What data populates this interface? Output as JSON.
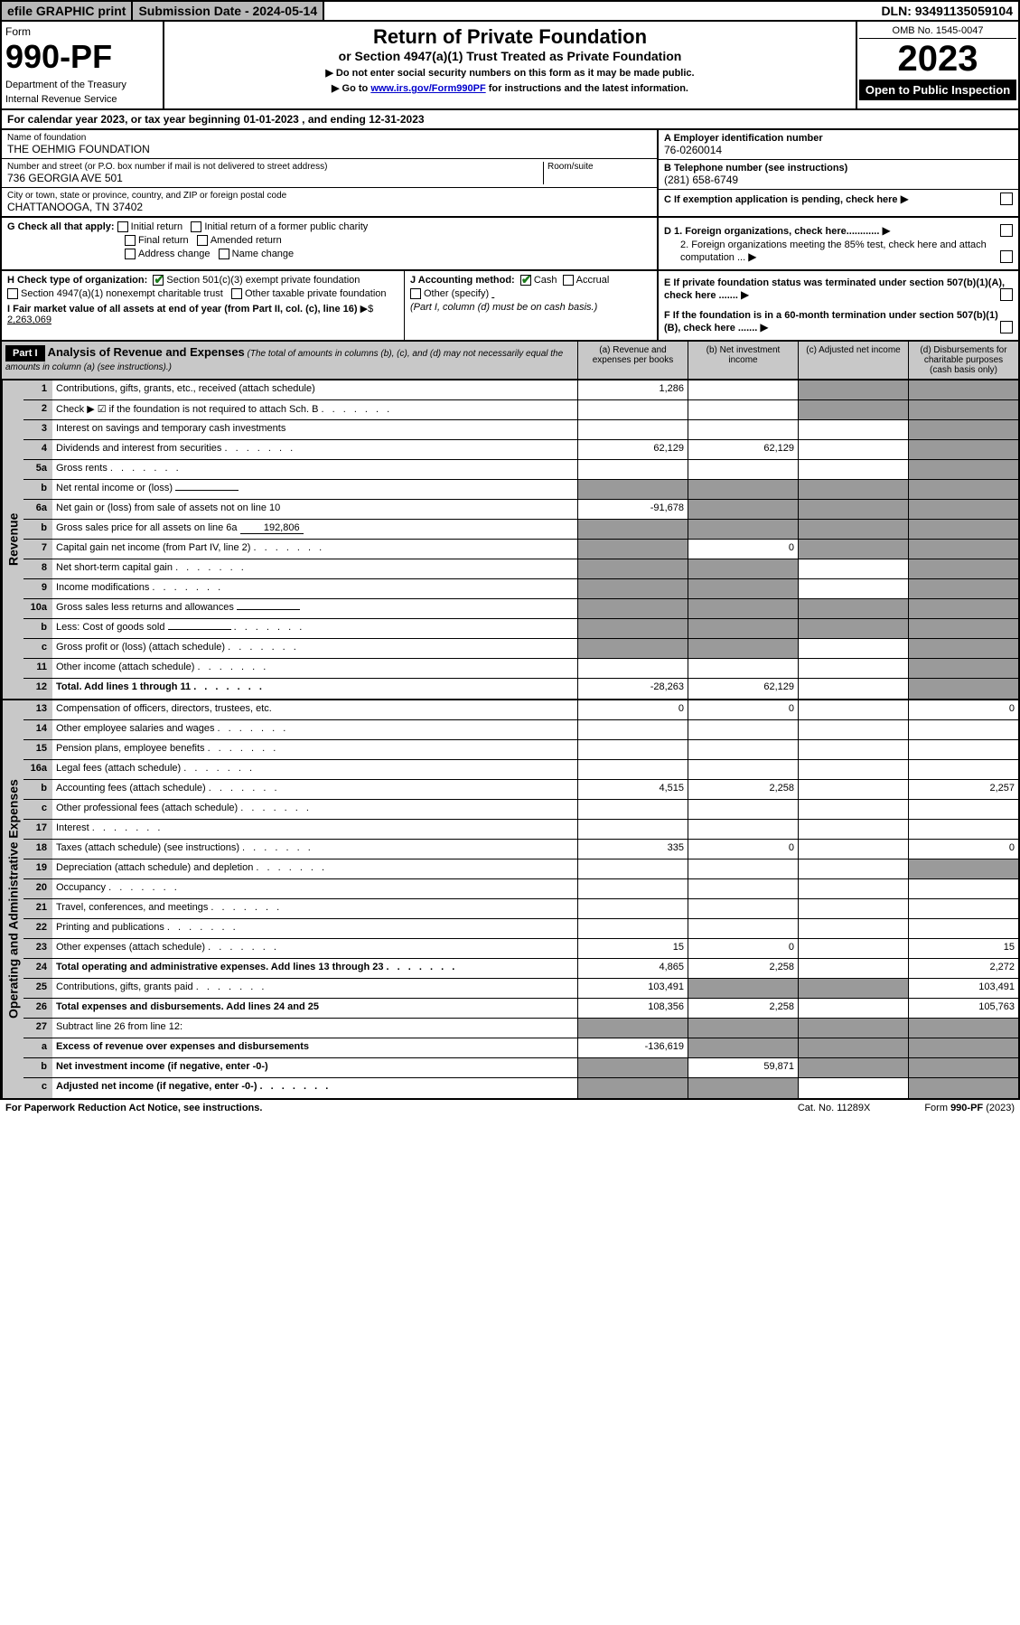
{
  "top": {
    "efile": "efile GRAPHIC print",
    "sub_date_label": "Submission Date - 2024-05-14",
    "dln": "DLN: 93491135059104"
  },
  "header": {
    "form_word": "Form",
    "form_no": "990-PF",
    "dept": "Department of the Treasury",
    "irs": "Internal Revenue Service",
    "title": "Return of Private Foundation",
    "subtitle": "or Section 4947(a)(1) Trust Treated as Private Foundation",
    "instr1": "▶ Do not enter social security numbers on this form as it may be made public.",
    "instr2_pre": "▶ Go to ",
    "instr2_link": "www.irs.gov/Form990PF",
    "instr2_post": " for instructions and the latest information.",
    "omb": "OMB No. 1545-0047",
    "year": "2023",
    "open": "Open to Public Inspection"
  },
  "cal": {
    "text_pre": "For calendar year 2023, or tax year beginning ",
    "begin": "01-01-2023",
    "mid": " , and ending ",
    "end": "12-31-2023"
  },
  "entity": {
    "name_label": "Name of foundation",
    "name": "THE OEHMIG FOUNDATION",
    "addr_label": "Number and street (or P.O. box number if mail is not delivered to street address)",
    "addr": "736 GEORGIA AVE 501",
    "room_label": "Room/suite",
    "city_label": "City or town, state or province, country, and ZIP or foreign postal code",
    "city": "CHATTANOOGA, TN  37402",
    "a_label": "A Employer identification number",
    "ein": "76-0260014",
    "b_label": "B Telephone number (see instructions)",
    "phone": "(281) 658-6749",
    "c_label": "C If exemption application is pending, check here",
    "d1": "D 1. Foreign organizations, check here............",
    "d2": "2. Foreign organizations meeting the 85% test, check here and attach computation ...",
    "e": "E  If private foundation status was terminated under section 507(b)(1)(A), check here .......",
    "f": "F  If the foundation is in a 60-month termination under section 507(b)(1)(B), check here .......",
    "g_label": "G Check all that apply:",
    "g_opts": [
      "Initial return",
      "Initial return of a former public charity",
      "Final return",
      "Amended return",
      "Address change",
      "Name change"
    ],
    "h_label": "H Check type of organization:",
    "h1": "Section 501(c)(3) exempt private foundation",
    "h2": "Section 4947(a)(1) nonexempt charitable trust",
    "h3": "Other taxable private foundation",
    "i_label": "I Fair market value of all assets at end of year (from Part II, col. (c), line 16)",
    "i_val": "2,263,069",
    "j_label": "J Accounting method:",
    "j_cash": "Cash",
    "j_accrual": "Accrual",
    "j_other": "Other (specify)",
    "j_note": "(Part I, column (d) must be on cash basis.)"
  },
  "part1": {
    "hdr": "Part I",
    "title": "Analysis of Revenue and Expenses",
    "note": " (The total of amounts in columns (b), (c), and (d) may not necessarily equal the amounts in column (a) (see instructions).)",
    "col_a": "(a)   Revenue and expenses per books",
    "col_b": "(b)   Net investment income",
    "col_c": "(c)   Adjusted net income",
    "col_d": "(d)   Disbursements for charitable purposes (cash basis only)"
  },
  "side": {
    "rev": "Revenue",
    "exp": "Operating and Administrative Expenses"
  },
  "rows": [
    {
      "n": "1",
      "d": "Contributions, gifts, grants, etc., received (attach schedule)",
      "a": "1,286",
      "b": "",
      "c": "g",
      "dd": "g"
    },
    {
      "n": "2",
      "d": "Check ▶ ☑ if the foundation is not required to attach Sch. B",
      "dots": true,
      "a": "",
      "b": "",
      "c": "g",
      "dd": "g",
      "chk": true
    },
    {
      "n": "3",
      "d": "Interest on savings and temporary cash investments",
      "a": "",
      "b": "",
      "c": "",
      "dd": "g"
    },
    {
      "n": "4",
      "d": "Dividends and interest from securities",
      "dots": true,
      "a": "62,129",
      "b": "62,129",
      "c": "",
      "dd": "g"
    },
    {
      "n": "5a",
      "d": "Gross rents",
      "dots": true,
      "a": "",
      "b": "",
      "c": "",
      "dd": "g"
    },
    {
      "n": "b",
      "d": "Net rental income or (loss)",
      "inline": "",
      "a": "g",
      "b": "g",
      "c": "g",
      "dd": "g"
    },
    {
      "n": "6a",
      "d": "Net gain or (loss) from sale of assets not on line 10",
      "a": "-91,678",
      "b": "g",
      "c": "g",
      "dd": "g"
    },
    {
      "n": "b",
      "d": "Gross sales price for all assets on line 6a",
      "inline": "192,806",
      "a": "g",
      "b": "g",
      "c": "g",
      "dd": "g"
    },
    {
      "n": "7",
      "d": "Capital gain net income (from Part IV, line 2)",
      "dots": true,
      "a": "g",
      "b": "0",
      "c": "g",
      "dd": "g"
    },
    {
      "n": "8",
      "d": "Net short-term capital gain",
      "dots": true,
      "a": "g",
      "b": "g",
      "c": "",
      "dd": "g"
    },
    {
      "n": "9",
      "d": "Income modifications",
      "dots": true,
      "a": "g",
      "b": "g",
      "c": "",
      "dd": "g"
    },
    {
      "n": "10a",
      "d": "Gross sales less returns and allowances",
      "inline": "",
      "a": "g",
      "b": "g",
      "c": "g",
      "dd": "g"
    },
    {
      "n": "b",
      "d": "Less: Cost of goods sold",
      "dots": true,
      "inline": "",
      "a": "g",
      "b": "g",
      "c": "g",
      "dd": "g"
    },
    {
      "n": "c",
      "d": "Gross profit or (loss) (attach schedule)",
      "dots": true,
      "a": "g",
      "b": "g",
      "c": "",
      "dd": "g"
    },
    {
      "n": "11",
      "d": "Other income (attach schedule)",
      "dots": true,
      "a": "",
      "b": "",
      "c": "",
      "dd": "g"
    },
    {
      "n": "12",
      "d": "Total. Add lines 1 through 11",
      "dots": true,
      "bold": true,
      "a": "-28,263",
      "b": "62,129",
      "c": "",
      "dd": "g"
    }
  ],
  "exp_rows": [
    {
      "n": "13",
      "d": "Compensation of officers, directors, trustees, etc.",
      "a": "0",
      "b": "0",
      "c": "",
      "dd": "0"
    },
    {
      "n": "14",
      "d": "Other employee salaries and wages",
      "dots": true,
      "a": "",
      "b": "",
      "c": "",
      "dd": ""
    },
    {
      "n": "15",
      "d": "Pension plans, employee benefits",
      "dots": true,
      "a": "",
      "b": "",
      "c": "",
      "dd": ""
    },
    {
      "n": "16a",
      "d": "Legal fees (attach schedule)",
      "dots": true,
      "a": "",
      "b": "",
      "c": "",
      "dd": ""
    },
    {
      "n": "b",
      "d": "Accounting fees (attach schedule)",
      "dots": true,
      "a": "4,515",
      "b": "2,258",
      "c": "",
      "dd": "2,257"
    },
    {
      "n": "c",
      "d": "Other professional fees (attach schedule)",
      "dots": true,
      "a": "",
      "b": "",
      "c": "",
      "dd": ""
    },
    {
      "n": "17",
      "d": "Interest",
      "dots": true,
      "a": "",
      "b": "",
      "c": "",
      "dd": ""
    },
    {
      "n": "18",
      "d": "Taxes (attach schedule) (see instructions)",
      "dots": true,
      "a": "335",
      "b": "0",
      "c": "",
      "dd": "0"
    },
    {
      "n": "19",
      "d": "Depreciation (attach schedule) and depletion",
      "dots": true,
      "a": "",
      "b": "",
      "c": "",
      "dd": "g"
    },
    {
      "n": "20",
      "d": "Occupancy",
      "dots": true,
      "a": "",
      "b": "",
      "c": "",
      "dd": ""
    },
    {
      "n": "21",
      "d": "Travel, conferences, and meetings",
      "dots": true,
      "a": "",
      "b": "",
      "c": "",
      "dd": ""
    },
    {
      "n": "22",
      "d": "Printing and publications",
      "dots": true,
      "a": "",
      "b": "",
      "c": "",
      "dd": ""
    },
    {
      "n": "23",
      "d": "Other expenses (attach schedule)",
      "dots": true,
      "a": "15",
      "b": "0",
      "c": "",
      "dd": "15"
    },
    {
      "n": "24",
      "d": "Total operating and administrative expenses. Add lines 13 through 23",
      "dots": true,
      "bold": true,
      "a": "4,865",
      "b": "2,258",
      "c": "",
      "dd": "2,272"
    },
    {
      "n": "25",
      "d": "Contributions, gifts, grants paid",
      "dots": true,
      "a": "103,491",
      "b": "g",
      "c": "g",
      "dd": "103,491"
    },
    {
      "n": "26",
      "d": "Total expenses and disbursements. Add lines 24 and 25",
      "bold": true,
      "a": "108,356",
      "b": "2,258",
      "c": "",
      "dd": "105,763"
    },
    {
      "n": "27",
      "d": "Subtract line 26 from line 12:",
      "a": "g",
      "b": "g",
      "c": "g",
      "dd": "g"
    },
    {
      "n": "a",
      "d": "Excess of revenue over expenses and disbursements",
      "bold": true,
      "a": "-136,619",
      "b": "g",
      "c": "g",
      "dd": "g"
    },
    {
      "n": "b",
      "d": "Net investment income (if negative, enter -0-)",
      "bold": true,
      "a": "g",
      "b": "59,871",
      "c": "g",
      "dd": "g"
    },
    {
      "n": "c",
      "d": "Adjusted net income (if negative, enter -0-)",
      "dots": true,
      "bold": true,
      "a": "g",
      "b": "g",
      "c": "",
      "dd": "g"
    }
  ],
  "foot": {
    "left": "For Paperwork Reduction Act Notice, see instructions.",
    "mid": "Cat. No. 11289X",
    "right": "Form 990-PF (2023)"
  }
}
